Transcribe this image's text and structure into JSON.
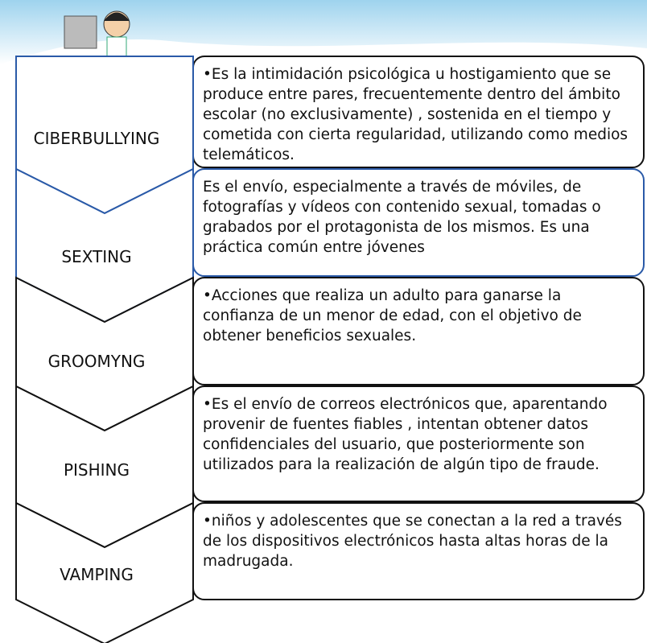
{
  "items": [
    {
      "term": "CIBERBULLYING",
      "description": "•Es la intimidación psicológica u hostigamiento que se produce entre pares, frecuentemente dentro del ámbito escolar (no exclusivamente) , sostenida en el tiempo y cometida con cierta regularidad, utilizando como medios telemáticos."
    },
    {
      "term": "SEXTING",
      "description": "Es el envío, especialmente a través de móviles, de fotografías y vídeos con contenido sexual, tomadas o grabados por el protagonista de los mismos. Es una práctica común entre jóvenes"
    },
    {
      "term": "GROOMYNG",
      "description": "•Acciones que realiza un adulto para ganarse la confianza de un menor de edad, con el objetivo de obtener beneficios sexuales."
    },
    {
      "term": "PISHING",
      "description": "•Es el envío de correos electrónicos que, aparentando provenir de fuentes fiables , intentan obtener datos confidenciales del usuario, que posteriormente son utilizados para la realización de algún tipo de fraude."
    },
    {
      "term": "VAMPING",
      "description": "•niños y adolescentes que se conectan a la red a través de los dispositivos electrónicos hasta altas horas de la madrugada."
    }
  ]
}
